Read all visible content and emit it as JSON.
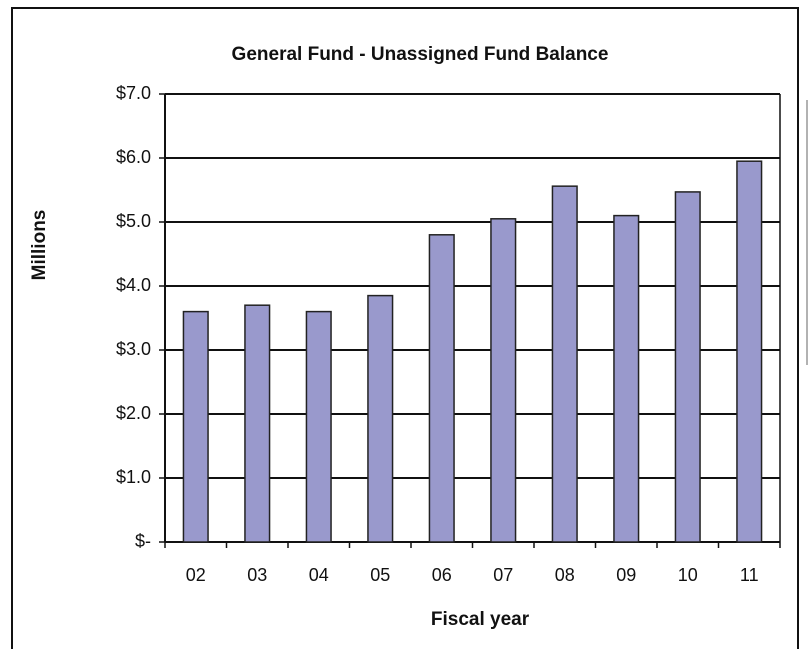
{
  "chart_data": {
    "type": "bar",
    "title": "General Fund - Unassigned Fund Balance",
    "y_label": "Millions",
    "x_label": "Fiscal year",
    "categories": [
      "02",
      "03",
      "04",
      "05",
      "06",
      "07",
      "08",
      "09",
      "10",
      "11"
    ],
    "values": [
      3.6,
      3.7,
      3.6,
      3.85,
      4.8,
      5.05,
      5.56,
      5.1,
      5.47,
      5.95
    ],
    "color": "#9999cc",
    "ylim": [
      0,
      7
    ],
    "yticks": [
      {
        "value": 0,
        "label": "$-"
      },
      {
        "value": 1,
        "label": "$1.0"
      },
      {
        "value": 2,
        "label": "$2.0"
      },
      {
        "value": 3,
        "label": "$3.0"
      },
      {
        "value": 4,
        "label": "$4.0"
      },
      {
        "value": 5,
        "label": "$5.0"
      },
      {
        "value": 6,
        "label": "$6.0"
      },
      {
        "value": 7,
        "label": "$7.0"
      }
    ],
    "grid": true
  }
}
